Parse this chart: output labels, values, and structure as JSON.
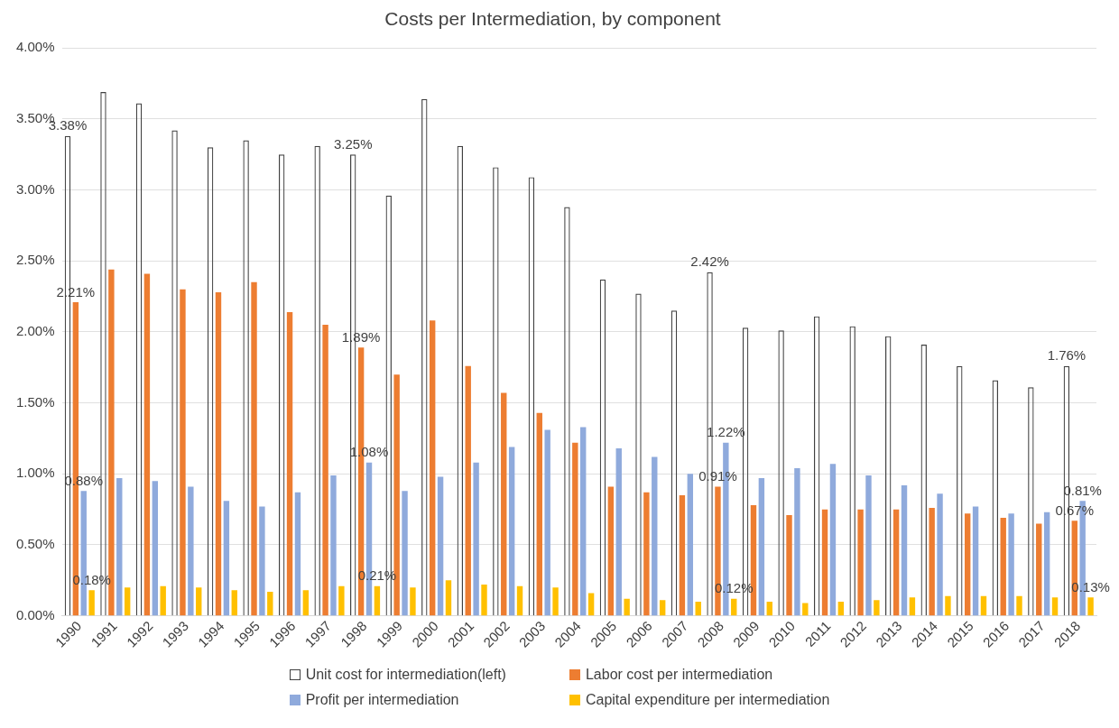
{
  "chart_data": {
    "type": "bar",
    "title": "Costs per Intermediation, by component",
    "categories": [
      "1990",
      "1991",
      "1992",
      "1993",
      "1994",
      "1995",
      "1996",
      "1997",
      "1998",
      "1999",
      "2000",
      "2001",
      "2002",
      "2003",
      "2004",
      "2005",
      "2006",
      "2007",
      "2008",
      "2009",
      "2010",
      "2011",
      "2012",
      "2013",
      "2014",
      "2015",
      "2016",
      "2017",
      "2018"
    ],
    "series": [
      {
        "name": "Unit cost for intermediation(left)",
        "color": "#404040",
        "values": [
          3.38,
          3.69,
          3.61,
          3.42,
          3.3,
          3.35,
          3.25,
          3.31,
          3.25,
          2.96,
          3.64,
          3.31,
          3.16,
          3.09,
          2.88,
          2.37,
          2.27,
          2.15,
          2.42,
          2.03,
          2.01,
          2.11,
          2.04,
          1.97,
          1.91,
          1.76,
          1.66,
          1.61,
          1.76
        ],
        "value_labels": [
          "3.38%",
          null,
          null,
          null,
          null,
          null,
          null,
          null,
          "3.25%",
          null,
          null,
          null,
          null,
          null,
          null,
          null,
          null,
          null,
          "2.42%",
          null,
          null,
          null,
          null,
          null,
          null,
          null,
          null,
          null,
          "1.76%"
        ]
      },
      {
        "name": "Labor cost per intermediation",
        "color": "#ed7d31",
        "values": [
          2.21,
          2.44,
          2.41,
          2.3,
          2.28,
          2.35,
          2.14,
          2.05,
          1.89,
          1.7,
          2.08,
          1.76,
          1.57,
          1.43,
          1.22,
          0.91,
          0.87,
          0.85,
          0.91,
          0.78,
          0.71,
          0.75,
          0.75,
          0.75,
          0.76,
          0.72,
          0.69,
          0.65,
          0.67
        ],
        "value_labels": [
          "2.21%",
          null,
          null,
          null,
          null,
          null,
          null,
          null,
          "1.89%",
          null,
          null,
          null,
          null,
          null,
          null,
          null,
          null,
          null,
          "0.91%",
          null,
          null,
          null,
          null,
          null,
          null,
          null,
          null,
          null,
          "0.67%"
        ]
      },
      {
        "name": "Profit per intermediation",
        "color": "#8faadc",
        "values": [
          0.88,
          0.97,
          0.95,
          0.91,
          0.81,
          0.77,
          0.87,
          0.99,
          1.08,
          0.88,
          0.98,
          1.08,
          1.19,
          1.31,
          1.33,
          1.18,
          1.12,
          1.0,
          1.22,
          0.97,
          1.04,
          1.07,
          0.99,
          0.92,
          0.86,
          0.77,
          0.72,
          0.73,
          0.81
        ],
        "value_labels": [
          "0.88%",
          null,
          null,
          null,
          null,
          null,
          null,
          null,
          "1.08%",
          null,
          null,
          null,
          null,
          null,
          null,
          null,
          null,
          null,
          "1.22%",
          null,
          null,
          null,
          null,
          null,
          null,
          null,
          null,
          null,
          "0.81%"
        ]
      },
      {
        "name": "Capital expenditure per intermediation",
        "color": "#ffc000",
        "values": [
          0.18,
          0.2,
          0.21,
          0.2,
          0.18,
          0.17,
          0.18,
          0.21,
          0.21,
          0.2,
          0.25,
          0.22,
          0.21,
          0.2,
          0.16,
          0.12,
          0.11,
          0.1,
          0.12,
          0.1,
          0.09,
          0.1,
          0.11,
          0.13,
          0.14,
          0.14,
          0.14,
          0.13,
          0.13
        ],
        "value_labels": [
          "0.18%",
          null,
          null,
          null,
          null,
          null,
          null,
          null,
          "0.21%",
          null,
          null,
          null,
          null,
          null,
          null,
          null,
          null,
          null,
          "0.12%",
          null,
          null,
          null,
          null,
          null,
          null,
          null,
          null,
          null,
          "0.13%"
        ]
      }
    ],
    "ylim": [
      0,
      4
    ],
    "yticks": [
      {
        "value": 0,
        "label": "0.00%"
      },
      {
        "value": 0.5,
        "label": "0.50%"
      },
      {
        "value": 1,
        "label": "1.00%"
      },
      {
        "value": 1.5,
        "label": "1.50%"
      },
      {
        "value": 2,
        "label": "2.00%"
      },
      {
        "value": 2.5,
        "label": "2.50%"
      },
      {
        "value": 3,
        "label": "3.00%"
      },
      {
        "value": 3.5,
        "label": "3.50%"
      },
      {
        "value": 4,
        "label": "4.00%"
      }
    ],
    "grid": "y",
    "legend": "bottom"
  }
}
